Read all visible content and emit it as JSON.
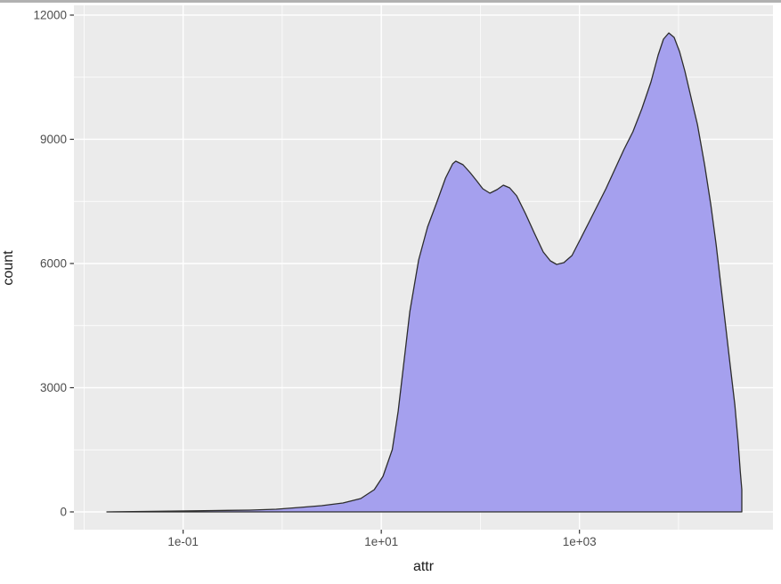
{
  "chart_data": {
    "type": "area",
    "title": "",
    "xlabel": "attr",
    "ylabel": "count",
    "x_scale": "log10",
    "xlim": [
      0.0079,
      89800
    ],
    "ylim": [
      -430,
      12236
    ],
    "x_ticks": [
      {
        "value": 0.1,
        "label": "1e-01"
      },
      {
        "value": 10,
        "label": "1e+01"
      },
      {
        "value": 1000,
        "label": "1e+03"
      }
    ],
    "x_minor": [
      0.01,
      1,
      100,
      10000
    ],
    "y_ticks": [
      {
        "value": 0,
        "label": "0"
      },
      {
        "value": 3000,
        "label": "3000"
      },
      {
        "value": 6000,
        "label": "6000"
      },
      {
        "value": 9000,
        "label": "9000"
      },
      {
        "value": 12000,
        "label": "12000"
      }
    ],
    "y_minor": [
      1500,
      4500,
      7500,
      10500
    ],
    "legend": null,
    "grid": "on",
    "panel_bg": "#ebebeb",
    "grid_color": "#ffffff",
    "fill_color": "#a5a0ee",
    "line_color": "#2d2d2d",
    "tick_label_color": "#4d4d4d",
    "axis_title_color": "#1a1a1a",
    "points": [
      [
        0.017,
        0
      ],
      [
        0.039,
        10
      ],
      [
        0.089,
        22
      ],
      [
        0.2,
        32
      ],
      [
        0.47,
        43
      ],
      [
        0.87,
        65
      ],
      [
        1.5,
        108
      ],
      [
        2.5,
        150
      ],
      [
        4.1,
        215
      ],
      [
        6.2,
        323
      ],
      [
        8.5,
        538
      ],
      [
        10.4,
        860
      ],
      [
        12.9,
        1505
      ],
      [
        14.8,
        2430
      ],
      [
        16.8,
        3548
      ],
      [
        19.4,
        4839
      ],
      [
        23.8,
        6086
      ],
      [
        29.3,
        6882
      ],
      [
        36.1,
        7463
      ],
      [
        44.5,
        8065
      ],
      [
        52.5,
        8409
      ],
      [
        56.5,
        8473
      ],
      [
        66.8,
        8387
      ],
      [
        79.0,
        8194
      ],
      [
        91.6,
        8000
      ],
      [
        105.6,
        7806
      ],
      [
        124.7,
        7699
      ],
      [
        147.2,
        7785
      ],
      [
        170.5,
        7892
      ],
      [
        197.4,
        7828
      ],
      [
        232.5,
        7634
      ],
      [
        285.6,
        7204
      ],
      [
        350.8,
        6731
      ],
      [
        431,
        6280
      ],
      [
        508,
        6064
      ],
      [
        589,
        5978
      ],
      [
        696,
        6021
      ],
      [
        840,
        6193
      ],
      [
        987,
        6516
      ],
      [
        1217,
        6946
      ],
      [
        1500,
        7376
      ],
      [
        1849,
        7806
      ],
      [
        2280,
        8279
      ],
      [
        2811,
        8752
      ],
      [
        3465,
        9182
      ],
      [
        4272,
        9742
      ],
      [
        5266,
        10387
      ],
      [
        6222,
        11032
      ],
      [
        7046,
        11419
      ],
      [
        7979,
        11570
      ],
      [
        9036,
        11462
      ],
      [
        10233,
        11118
      ],
      [
        11589,
        10645
      ],
      [
        13408,
        10000
      ],
      [
        15511,
        9355
      ],
      [
        18310,
        8387
      ],
      [
        21185,
        7419
      ],
      [
        23966,
        6451
      ],
      [
        26719,
        5484
      ],
      [
        29789,
        4516
      ],
      [
        33211,
        3548
      ],
      [
        37026,
        2581
      ],
      [
        40000,
        1677
      ],
      [
        42000,
        968
      ],
      [
        43500,
        538
      ],
      [
        43500,
        0
      ]
    ]
  }
}
